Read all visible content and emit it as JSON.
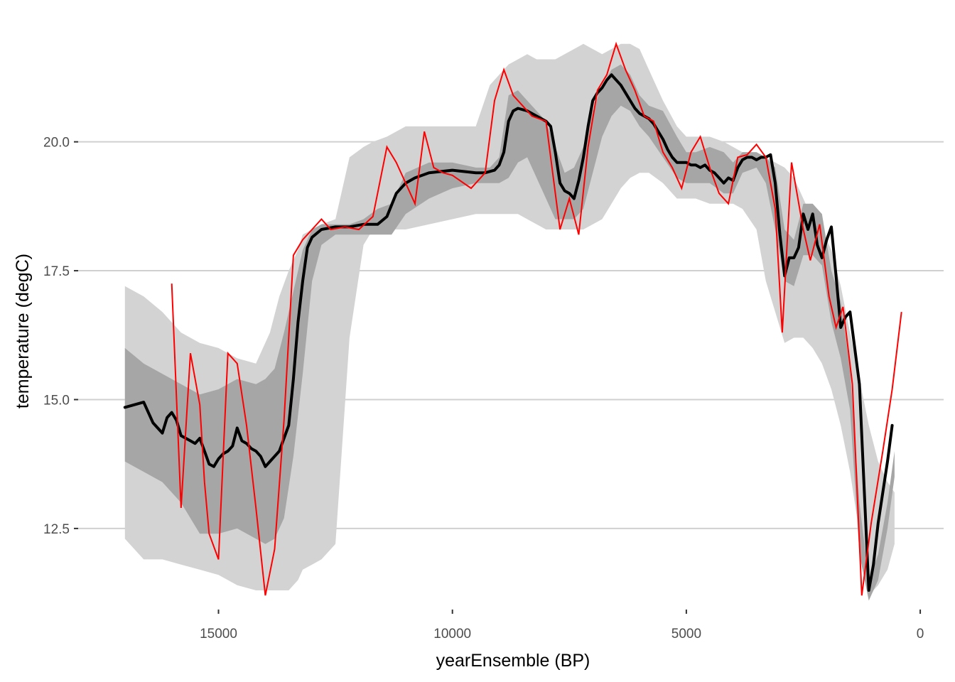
{
  "chart_data": {
    "type": "area",
    "xlabel": "yearEnsemble (BP)",
    "ylabel": "temperature (degC)",
    "x_reversed": true,
    "xlim": [
      18000,
      -500
    ],
    "ylim": [
      10.9,
      22.2
    ],
    "x_ticks": [
      15000,
      10000,
      5000,
      0
    ],
    "x_tick_labels": [
      "15000",
      "10000",
      "5000",
      "0"
    ],
    "y_ticks": [
      12.5,
      15.0,
      17.5,
      20.0
    ],
    "y_tick_labels": [
      "12.5",
      "15.0",
      "17.5",
      "20.0"
    ],
    "grid": "horizontal",
    "legend": "none",
    "colors": {
      "outer_band": "#d3d3d3",
      "inner_band": "#a6a6a6",
      "median": "#000000",
      "reconstruction": "#ff0000",
      "grid": "#d0d0d0"
    },
    "series": [
      {
        "kind": "band-outer",
        "x": [
          17000,
          16600,
          16200,
          15800,
          15400,
          15000,
          14600,
          14200,
          13900,
          13700,
          13500,
          13300,
          13200,
          13000,
          12800,
          12500,
          12200,
          11900,
          11700,
          11400,
          11000,
          10500,
          10000,
          9500,
          9200,
          9000,
          8800,
          8600,
          8400,
          8200,
          8000,
          7800,
          7600,
          7400,
          7200,
          7000,
          6800,
          6600,
          6400,
          6200,
          6000,
          5800,
          5500,
          5200,
          5000,
          4800,
          4500,
          4200,
          4000,
          3800,
          3500,
          3300,
          3100,
          2900,
          2700,
          2500,
          2300,
          2100,
          1900,
          1700,
          1500,
          1300,
          1100,
          900,
          700,
          550
        ],
        "upper": [
          17.2,
          17.0,
          16.7,
          16.3,
          16.1,
          16.0,
          15.8,
          15.7,
          16.3,
          17.0,
          17.5,
          17.9,
          18.2,
          18.3,
          18.4,
          18.5,
          19.7,
          19.9,
          20.0,
          20.1,
          20.3,
          20.3,
          20.3,
          20.3,
          21.1,
          21.3,
          21.5,
          21.6,
          21.7,
          21.6,
          21.6,
          21.6,
          21.7,
          21.8,
          21.9,
          21.8,
          21.7,
          21.8,
          21.9,
          21.9,
          21.8,
          21.4,
          20.8,
          20.3,
          20.1,
          20.1,
          20.1,
          20.0,
          19.9,
          19.8,
          19.8,
          19.7,
          19.6,
          19.5,
          19.3,
          18.9,
          18.5,
          18.3,
          17.9,
          17.2,
          16.3,
          15.4,
          14.5,
          13.8,
          13.4,
          13.2
        ],
        "lower": [
          12.3,
          11.9,
          11.9,
          11.8,
          11.7,
          11.6,
          11.4,
          11.3,
          11.3,
          11.3,
          11.3,
          11.5,
          11.7,
          11.8,
          11.9,
          12.2,
          16.2,
          18.0,
          18.3,
          18.3,
          18.3,
          18.4,
          18.5,
          18.6,
          18.6,
          18.6,
          18.6,
          18.6,
          18.5,
          18.4,
          18.3,
          18.3,
          18.3,
          18.3,
          18.3,
          18.4,
          18.5,
          18.8,
          19.1,
          19.3,
          19.4,
          19.4,
          19.2,
          18.9,
          18.9,
          18.9,
          18.8,
          18.8,
          18.8,
          18.7,
          18.3,
          17.3,
          16.7,
          16.1,
          16.2,
          16.2,
          16.0,
          15.7,
          15.2,
          14.5,
          13.6,
          12.4,
          11.2,
          11.4,
          11.7,
          12.2
        ]
      },
      {
        "kind": "band-inner",
        "x": [
          17000,
          16600,
          16200,
          15800,
          15400,
          15000,
          14600,
          14200,
          14000,
          13800,
          13600,
          13400,
          13200,
          13000,
          12800,
          12500,
          12200,
          11900,
          11600,
          11300,
          11000,
          10500,
          10000,
          9500,
          9200,
          9000,
          8800,
          8600,
          8400,
          8200,
          8000,
          7800,
          7600,
          7400,
          7200,
          7000,
          6800,
          6600,
          6400,
          6200,
          6000,
          5800,
          5500,
          5200,
          5000,
          4800,
          4500,
          4200,
          4000,
          3800,
          3500,
          3300,
          3100,
          2900,
          2700,
          2500,
          2300,
          2100,
          1900,
          1700,
          1500,
          1300,
          1100,
          900,
          700,
          550
        ],
        "upper": [
          16.0,
          15.7,
          15.5,
          15.3,
          15.1,
          15.2,
          15.4,
          15.3,
          15.4,
          15.6,
          16.3,
          17.1,
          17.9,
          18.3,
          18.4,
          18.4,
          18.4,
          18.5,
          18.7,
          18.8,
          19.4,
          19.6,
          19.6,
          19.5,
          19.5,
          19.7,
          20.9,
          21.0,
          20.8,
          20.6,
          20.4,
          19.9,
          19.4,
          19.5,
          19.9,
          20.6,
          21.1,
          21.4,
          21.5,
          21.3,
          20.9,
          20.7,
          20.6,
          20.1,
          19.8,
          19.8,
          19.9,
          19.8,
          19.6,
          19.8,
          19.8,
          19.7,
          19.5,
          18.3,
          18.1,
          18.8,
          18.8,
          18.6,
          17.5,
          16.9,
          15.6,
          13.0,
          11.5,
          12.0,
          13.0,
          14.0
        ],
        "lower": [
          13.8,
          13.6,
          13.4,
          13.0,
          12.4,
          12.4,
          12.5,
          12.3,
          12.2,
          12.3,
          12.7,
          13.9,
          15.5,
          17.3,
          18.0,
          18.2,
          18.2,
          18.2,
          18.2,
          18.2,
          18.6,
          18.9,
          19.1,
          19.2,
          19.2,
          19.2,
          19.3,
          19.6,
          19.7,
          19.3,
          18.9,
          18.5,
          18.5,
          18.5,
          18.7,
          19.4,
          20.1,
          20.5,
          20.7,
          20.6,
          20.3,
          20.1,
          19.7,
          19.3,
          19.2,
          19.2,
          19.2,
          19.0,
          19.0,
          19.4,
          19.5,
          19.2,
          18.3,
          17.3,
          17.2,
          17.8,
          17.8,
          17.6,
          16.5,
          15.8,
          14.8,
          12.0,
          11.1,
          11.5,
          12.5,
          13.5
        ]
      },
      {
        "kind": "median-line",
        "x": [
          17000,
          16600,
          16400,
          16200,
          16100,
          16000,
          15900,
          15800,
          15700,
          15600,
          15500,
          15400,
          15300,
          15200,
          15100,
          15000,
          14900,
          14800,
          14700,
          14600,
          14500,
          14400,
          14300,
          14200,
          14100,
          14000,
          13900,
          13800,
          13700,
          13600,
          13500,
          13400,
          13300,
          13200,
          13100,
          13000,
          12800,
          12500,
          12200,
          11900,
          11600,
          11400,
          11200,
          11000,
          10800,
          10500,
          10000,
          9500,
          9300,
          9100,
          9000,
          8900,
          8800,
          8700,
          8600,
          8400,
          8200,
          8000,
          7900,
          7800,
          7700,
          7600,
          7500,
          7400,
          7300,
          7200,
          7100,
          7000,
          6900,
          6800,
          6700,
          6600,
          6500,
          6400,
          6300,
          6200,
          6100,
          6000,
          5900,
          5800,
          5700,
          5600,
          5500,
          5400,
          5300,
          5200,
          5100,
          5000,
          4900,
          4800,
          4700,
          4600,
          4500,
          4400,
          4300,
          4200,
          4100,
          4000,
          3900,
          3800,
          3700,
          3600,
          3500,
          3400,
          3300,
          3200,
          3100,
          3000,
          2900,
          2800,
          2700,
          2600,
          2500,
          2400,
          2300,
          2200,
          2100,
          2000,
          1900,
          1800,
          1700,
          1600,
          1500,
          1400,
          1300,
          1200,
          1100,
          1000,
          900,
          800,
          700,
          600
        ],
        "y": [
          14.85,
          14.95,
          14.55,
          14.35,
          14.65,
          14.75,
          14.6,
          14.3,
          14.25,
          14.2,
          14.15,
          14.25,
          14.0,
          13.75,
          13.7,
          13.85,
          13.95,
          14.0,
          14.1,
          14.45,
          14.2,
          14.15,
          14.05,
          14.0,
          13.9,
          13.7,
          13.8,
          13.9,
          14.0,
          14.25,
          14.5,
          15.4,
          16.5,
          17.3,
          17.95,
          18.15,
          18.3,
          18.35,
          18.35,
          18.4,
          18.4,
          18.55,
          19.0,
          19.2,
          19.3,
          19.4,
          19.45,
          19.4,
          19.4,
          19.45,
          19.55,
          19.8,
          20.4,
          20.6,
          20.65,
          20.6,
          20.5,
          20.4,
          20.3,
          19.8,
          19.2,
          19.05,
          19.0,
          18.9,
          19.25,
          19.7,
          20.3,
          20.8,
          20.95,
          21.05,
          21.2,
          21.3,
          21.2,
          21.1,
          20.95,
          20.8,
          20.65,
          20.55,
          20.5,
          20.45,
          20.35,
          20.2,
          20.05,
          19.85,
          19.7,
          19.6,
          19.6,
          19.6,
          19.55,
          19.55,
          19.5,
          19.55,
          19.45,
          19.4,
          19.3,
          19.2,
          19.3,
          19.25,
          19.5,
          19.65,
          19.7,
          19.7,
          19.65,
          19.7,
          19.7,
          19.75,
          19.2,
          18.2,
          17.4,
          17.75,
          17.75,
          17.95,
          18.6,
          18.3,
          18.6,
          18.0,
          17.75,
          18.1,
          18.35,
          17.4,
          16.4,
          16.6,
          16.7,
          16.0,
          15.3,
          13.3,
          11.3,
          11.8,
          12.6,
          13.2,
          13.8,
          14.5
        ]
      },
      {
        "kind": "reconstruction-line",
        "x": [
          16000,
          15800,
          15600,
          15400,
          15300,
          15200,
          15000,
          14800,
          14600,
          14400,
          14200,
          14000,
          13800,
          13600,
          13400,
          13200,
          13000,
          12800,
          12600,
          12300,
          12000,
          11700,
          11400,
          11200,
          11000,
          10800,
          10600,
          10400,
          10200,
          10000,
          9600,
          9300,
          9100,
          8900,
          8700,
          8500,
          8300,
          8000,
          7700,
          7500,
          7300,
          7100,
          6900,
          6700,
          6500,
          6300,
          6100,
          5900,
          5700,
          5500,
          5300,
          5100,
          4900,
          4700,
          4500,
          4300,
          4100,
          3900,
          3700,
          3500,
          3300,
          3100,
          2950,
          2750,
          2500,
          2350,
          2150,
          1950,
          1800,
          1650,
          1450,
          1250,
          1050,
          800,
          600,
          400
        ],
        "y": [
          17.25,
          12.9,
          15.9,
          14.9,
          13.4,
          12.4,
          11.9,
          15.9,
          15.7,
          14.5,
          12.9,
          11.2,
          12.1,
          14.6,
          17.8,
          18.1,
          18.3,
          18.5,
          18.3,
          18.35,
          18.3,
          18.55,
          19.9,
          19.6,
          19.2,
          18.8,
          20.2,
          19.5,
          19.4,
          19.35,
          19.1,
          19.4,
          20.8,
          21.4,
          20.9,
          20.7,
          20.5,
          20.4,
          18.3,
          18.9,
          18.2,
          19.9,
          21.0,
          21.3,
          21.9,
          21.4,
          21.0,
          20.5,
          20.4,
          19.8,
          19.5,
          19.1,
          19.8,
          20.1,
          19.5,
          19.0,
          18.8,
          19.7,
          19.75,
          19.95,
          19.7,
          18.7,
          16.3,
          19.6,
          18.3,
          17.7,
          18.4,
          17.0,
          16.4,
          16.8,
          15.3,
          11.2,
          12.6,
          14.0,
          15.2,
          16.7
        ]
      }
    ]
  }
}
